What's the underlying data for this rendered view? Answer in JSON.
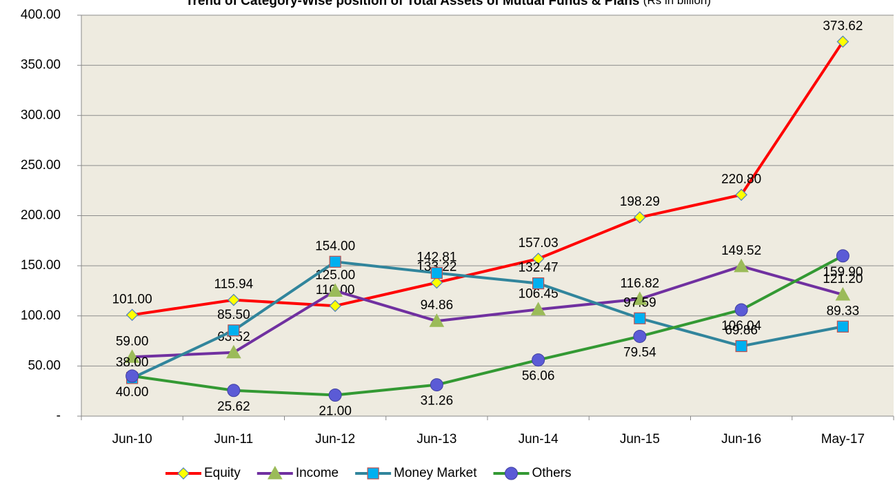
{
  "chart_data": {
    "type": "line",
    "title": "Trend of Category-Wise position of Total Assets of Mutual Funds & Plans",
    "subtitle": "(Rs in billion)",
    "categories": [
      "Jun-10",
      "Jun-11",
      "Jun-12",
      "Jun-13",
      "Jun-14",
      "Jun-15",
      "Jun-16",
      "May-17"
    ],
    "ylim": [
      0,
      400
    ],
    "yticks": [
      {
        "value": 0,
        "label": "-"
      },
      {
        "value": 50,
        "label": "50.00"
      },
      {
        "value": 100,
        "label": "100.00"
      },
      {
        "value": 150,
        "label": "150.00"
      },
      {
        "value": 200,
        "label": "200.00"
      },
      {
        "value": 250,
        "label": "250.00"
      },
      {
        "value": 300,
        "label": "300.00"
      },
      {
        "value": 350,
        "label": "350.00"
      },
      {
        "value": 400,
        "label": "400.00"
      }
    ],
    "grid": true,
    "legend": "bottom",
    "series": [
      {
        "name": "Equity",
        "color": "#ff0000",
        "marker": "diamond",
        "marker_color": "#ffff00",
        "values": [
          101.0,
          115.94,
          110.0,
          133.22,
          157.03,
          198.29,
          220.8,
          373.62
        ],
        "value_labels": [
          "101.00",
          "115.94",
          "110.00",
          "133.22",
          "157.03",
          "198.29",
          "220.80",
          "373.62"
        ]
      },
      {
        "name": "Income",
        "color": "#7030a0",
        "marker": "triangle",
        "marker_color": "#9bbb59",
        "values": [
          59.0,
          63.52,
          125.0,
          94.86,
          106.45,
          116.82,
          149.52,
          121.2
        ],
        "value_labels": [
          "59.00",
          "63.52",
          "125.00",
          "94.86",
          "106.45",
          "116.82",
          "149.52",
          "121.20"
        ]
      },
      {
        "name": "Money Market",
        "color": "#31859c",
        "marker": "square",
        "marker_color": "#00b0f0",
        "values": [
          38.0,
          85.5,
          154.0,
          142.81,
          132.47,
          97.59,
          69.86,
          89.33
        ],
        "value_labels": [
          "38.00",
          "85.50",
          "154.00",
          "142.81",
          "132.47",
          "97.59",
          "69.86",
          "89.33"
        ]
      },
      {
        "name": "Others",
        "color": "#339933",
        "marker": "circle",
        "marker_color": "#5b5bd6",
        "values": [
          40.0,
          25.62,
          21.0,
          31.26,
          56.06,
          79.54,
          106.04,
          159.9
        ],
        "value_labels": [
          "40.00",
          "25.62",
          "21.00",
          "31.26",
          "56.06",
          "79.54",
          "106.04",
          "159.90"
        ]
      }
    ]
  }
}
